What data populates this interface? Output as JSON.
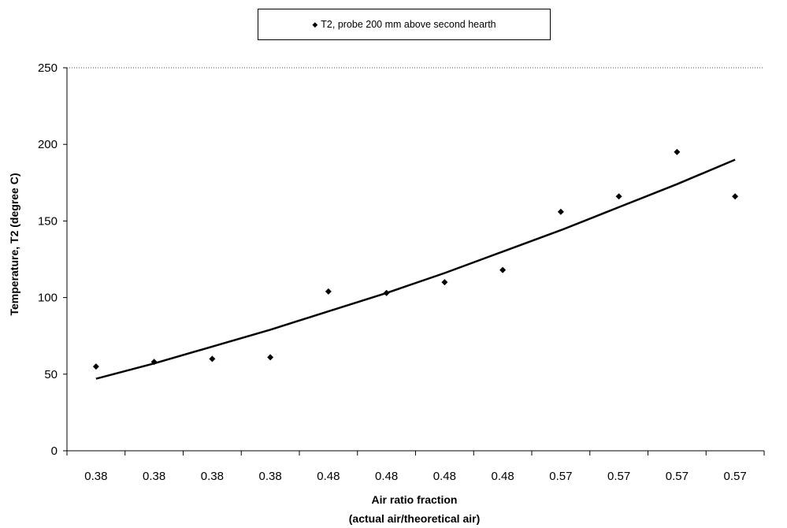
{
  "chart_data": {
    "type": "scatter",
    "legend": {
      "entries": [
        "T2, probe 200 mm above second hearth"
      ],
      "placement": "top"
    },
    "ylabel": "Temperature, T2 (degree C)",
    "xlabel_line1": "Air ratio fraction",
    "xlabel_line2": "(actual air/theoretical air)",
    "categories": [
      "0.38",
      "0.38",
      "0.38",
      "0.38",
      "0.48",
      "0.48",
      "0.48",
      "0.48",
      "0.57",
      "0.57",
      "0.57",
      "0.57"
    ],
    "ylim": [
      0,
      250
    ],
    "yticks": [
      0,
      50,
      100,
      150,
      200,
      250
    ],
    "grid": "dotted horizontal line at top only",
    "series": [
      {
        "name": "T2, probe 200 mm above second hearth",
        "marker": "diamond",
        "color": "#000000",
        "values": [
          55,
          58,
          60,
          61,
          104,
          103,
          110,
          118,
          156,
          166,
          195,
          166
        ]
      }
    ],
    "trendline": {
      "type": "polynomial",
      "color": "#000000",
      "values": [
        47,
        57,
        68,
        79,
        91,
        103,
        116,
        130,
        144,
        159,
        174,
        190
      ]
    }
  }
}
